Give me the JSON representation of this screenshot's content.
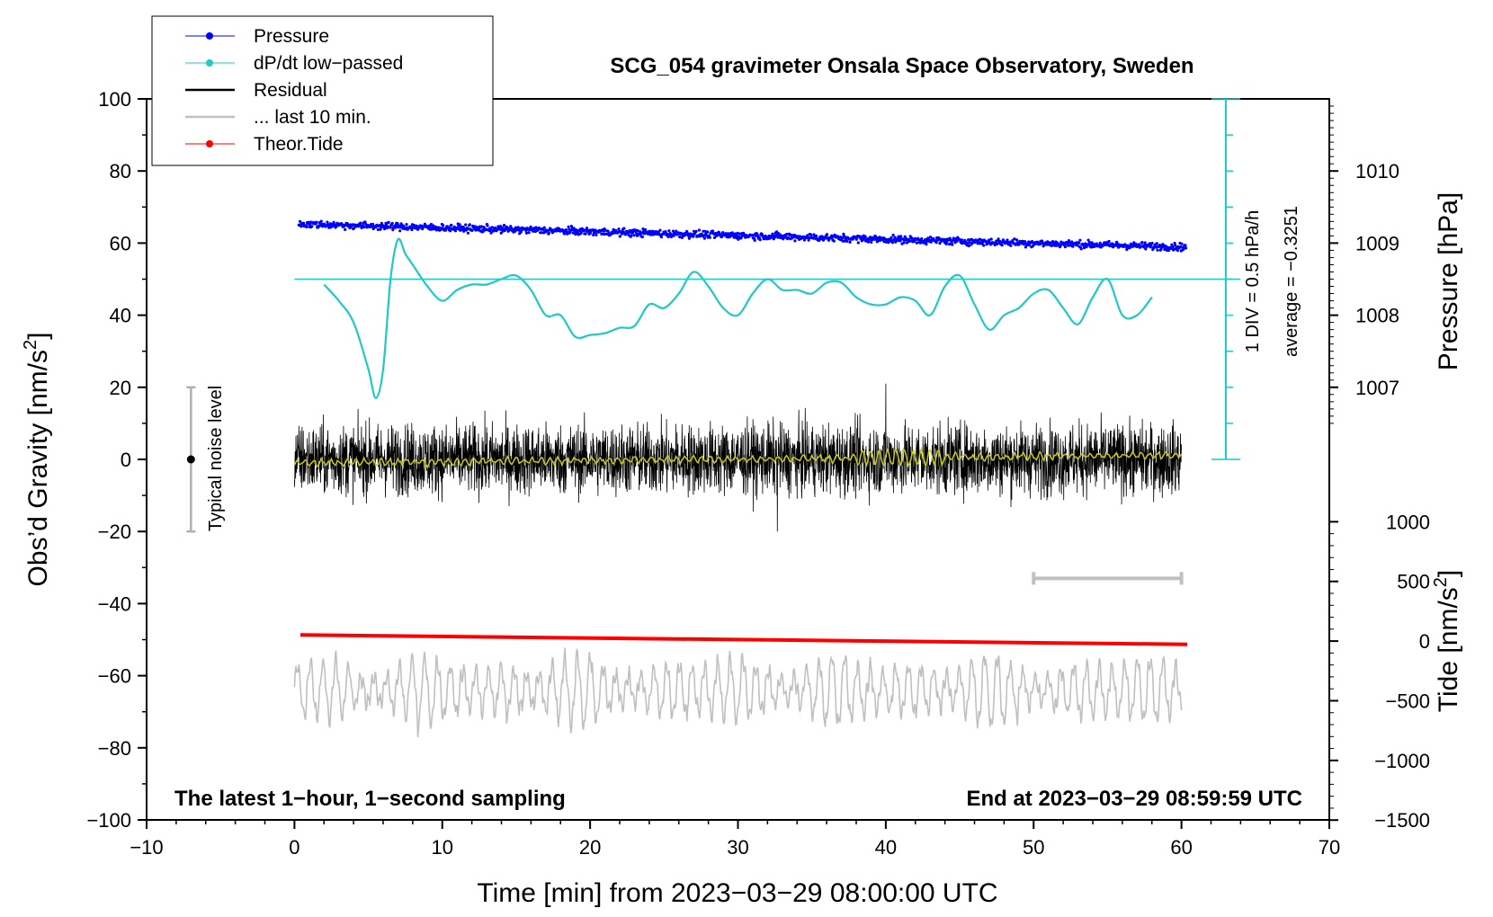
{
  "chart_data": {
    "type": "line",
    "title": "SCG_054 gravimeter Onsala Space Observatory, Sweden",
    "xlabel": "Time [min] from 2023−03−29 08:00:00 UTC",
    "ylabel_left": "Obs’d Gravity [nm/s",
    "ylabel_left_sup": "2",
    "ylabel_left_tail": "]",
    "ylabel_right_pressure": "Pressure [hPa]",
    "ylabel_right_tide": "Tide [nm/s",
    "ylabel_right_tide_sup": "2",
    "ylabel_right_tide_tail": "]",
    "xlim": [
      -10,
      70
    ],
    "ylim_left": [
      -100,
      100
    ],
    "x_ticks": [
      -10,
      0,
      10,
      20,
      30,
      40,
      50,
      60,
      70
    ],
    "x_tick_labels": [
      "−10",
      "0",
      "10",
      "20",
      "30",
      "40",
      "50",
      "60",
      "70"
    ],
    "y_left_ticks": [
      -100,
      -80,
      -60,
      -40,
      -20,
      0,
      20,
      40,
      60,
      80,
      100
    ],
    "y_left_tick_labels": [
      "−100",
      "−80",
      "−60",
      "−40",
      "−20",
      "0",
      "20",
      "40",
      "60",
      "80",
      "100"
    ],
    "pressure_ticks": [
      1007,
      1008,
      1009,
      1010
    ],
    "pressure_tick_labels": [
      "1007",
      "1008",
      "1009",
      "1010"
    ],
    "pressure_axis_map": {
      "hpa_ref": 1007,
      "gravity_at_ref": 20,
      "gravity_per_hpa": 20
    },
    "tide_ticks": [
      1000,
      500,
      0,
      -500,
      -1000,
      -1500
    ],
    "tide_tick_labels": [
      "1000",
      "500",
      "0",
      "−500",
      "−1000",
      "−1500"
    ],
    "tide_axis_map": {
      "nms2_ref": 0,
      "gravity_at_ref": -50.4,
      "gravity_per_nms2": 0.0331
    },
    "legend": [
      {
        "label": "Pressure",
        "color": "#0000ff",
        "marker": "dot"
      },
      {
        "label": "dP/dt low−passed",
        "color": "#20c8c8",
        "marker": "dot"
      },
      {
        "label": "Residual",
        "color": "#000000",
        "marker": "line"
      },
      {
        "label": "... last 10 min.",
        "color": "#c0c0c0",
        "marker": "line"
      },
      {
        "label": "Theor.Tide",
        "color": "#ff0000",
        "marker": "dot"
      }
    ],
    "series": [
      {
        "name": "Pressure",
        "color": "#0000ff",
        "x_start": 0.3,
        "x_end": 60.3,
        "y_start": 65.3,
        "y_end": 58.9,
        "jitter": 1.0
      },
      {
        "name": "dP/dt low−passed",
        "color": "#20c8c8",
        "x": [
          2,
          3,
          4,
          5,
          5.5,
          6,
          6.5,
          7,
          7.5,
          8,
          9,
          10,
          11,
          12,
          13,
          14,
          15,
          16,
          17,
          18,
          19,
          20,
          21,
          22,
          23,
          24,
          25,
          26,
          27,
          28,
          29,
          30,
          31,
          32,
          33,
          34,
          35,
          36,
          37,
          38,
          39,
          40,
          41,
          42,
          43,
          44,
          45,
          46,
          47,
          48,
          49,
          50,
          51,
          52,
          53,
          54,
          55,
          56,
          57,
          58
        ],
        "y": [
          48.5,
          44,
          38,
          25,
          17,
          25,
          50,
          61,
          57,
          54,
          48,
          44,
          47,
          48.5,
          48.5,
          50,
          51,
          47,
          40,
          40,
          34,
          34.5,
          35,
          36.5,
          37,
          43,
          42,
          46,
          52,
          48,
          42,
          40,
          46,
          50,
          47,
          47,
          46,
          49,
          49,
          45,
          43,
          43,
          45,
          44,
          40,
          48,
          51,
          43,
          36,
          40,
          42,
          46,
          47,
          42,
          37.5,
          45,
          50,
          40,
          40,
          45
        ]
      },
      {
        "name": "Residual",
        "color": "#000000",
        "x_start": 0,
        "x_end": 60,
        "amplitude": 6,
        "notable_max": 21,
        "notable_min": -20
      },
      {
        "name": "Residual smoothed",
        "color": "#c8c820",
        "x_start": 0,
        "x_end": 60,
        "y_start": -1,
        "y_end": 1.2
      },
      {
        "name": "... last 10 min.",
        "color": "#c0c0c0",
        "x_start": 0,
        "x_end": 60,
        "center": -64,
        "amplitude": 10
      },
      {
        "name": "Theor.Tide",
        "color": "#ff0000",
        "x_start": 0.4,
        "x_end": 60.4,
        "y_start": -48.7,
        "y_end": -51.3
      }
    ],
    "pressure_scale": {
      "x": 63,
      "y_min": 0,
      "y_max": 100,
      "label": "1 DIV = 0.5 hPa/h",
      "average_label": "average = −0.3251",
      "reference_y": 50
    },
    "noise_bar": {
      "x": -7,
      "y_center": 0,
      "y_low": -20,
      "y_high": 20,
      "label": "Typical noise level"
    },
    "last10_bar": {
      "x_start": 50,
      "x_end": 60,
      "y": -33
    },
    "footer_left": "The latest 1−hour, 1−second sampling",
    "footer_right": "End at 2023−03−29 08:59:59 UTC"
  }
}
